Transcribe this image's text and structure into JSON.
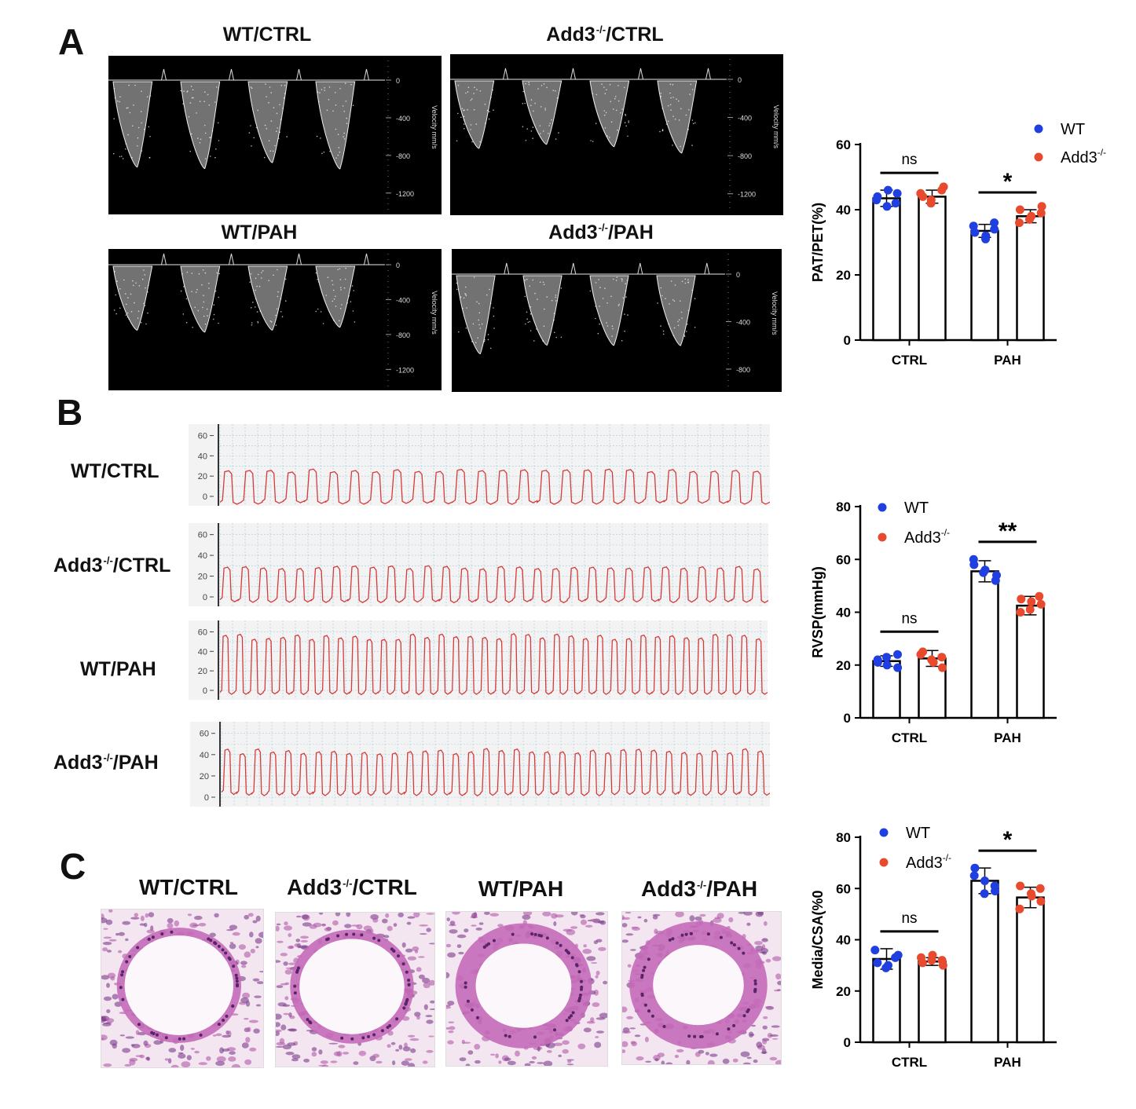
{
  "panels": {
    "A": "A",
    "B": "B",
    "C": "C"
  },
  "groups": {
    "wt_ctrl": "WT/CTRL",
    "add3_prefix": "Add3",
    "add3_sup": "-/-",
    "ctrl_suffix": "/CTRL",
    "wt_pah": "WT/PAH",
    "pah_suffix": "/PAH"
  },
  "doppler": {
    "ticks_a": [
      "0",
      "-400",
      "-800",
      "-1200"
    ],
    "ticks_b": [
      "0",
      "-400",
      "-800"
    ],
    "axis_label": "Velocity mm/s"
  },
  "pressure": {
    "ticks": [
      "60",
      "40",
      "20",
      "0"
    ]
  },
  "colors": {
    "wt": "#1f3fe0",
    "add3": "#e84a2e",
    "trace": "#d63a3a"
  },
  "chart_data": [
    {
      "type": "bar",
      "panel": "A",
      "categories": [
        "CTRL",
        "PAH"
      ],
      "ylabel": "PAT/PET(%)",
      "ylim": [
        0,
        60
      ],
      "yticks": [
        0,
        20,
        40,
        60
      ],
      "legend_position": "top-right",
      "series": [
        {
          "name": "WT",
          "values": [
            43.5,
            33.5
          ],
          "errors": [
            2.5,
            2.0
          ],
          "points": [
            [
              44,
              46,
              42,
              43,
              41,
              45
            ],
            [
              35,
              32,
              34,
              33,
              31,
              36
            ]
          ]
        },
        {
          "name": "Add3-/-",
          "values": [
            44,
            38
          ],
          "errors": [
            2.0,
            2.0
          ],
          "points": [
            [
              45,
              43,
              47,
              44,
              42,
              46
            ],
            [
              40,
              37,
              39,
              36,
              38,
              41
            ]
          ]
        }
      ],
      "significance": [
        "ns",
        "*"
      ]
    },
    {
      "type": "bar",
      "panel": "B",
      "categories": [
        "CTRL",
        "PAH"
      ],
      "ylabel": "RVSP(mmHg)",
      "ylim": [
        0,
        80
      ],
      "yticks": [
        0,
        20,
        40,
        60,
        80
      ],
      "legend_position": "top-left",
      "series": [
        {
          "name": "WT",
          "values": [
            21.5,
            55.5
          ],
          "errors": [
            2.0,
            4.0
          ],
          "points": [
            [
              22,
              20,
              24,
              21,
              23,
              19
            ],
            [
              58,
              55,
              52,
              60,
              56,
              54
            ]
          ]
        },
        {
          "name": "Add3-/-",
          "values": [
            22.5,
            42.5
          ],
          "errors": [
            3.0,
            3.5
          ],
          "points": [
            [
              24,
              21,
              19,
              25,
              22,
              23
            ],
            [
              45,
              41,
              43,
              40,
              44,
              46
            ]
          ]
        }
      ],
      "significance": [
        "ns",
        "**"
      ]
    },
    {
      "type": "bar",
      "panel": "C",
      "categories": [
        "CTRL",
        "PAH"
      ],
      "ylabel": "Media/CSA(%0",
      "ylim": [
        0,
        80
      ],
      "yticks": [
        0,
        20,
        40,
        60,
        80
      ],
      "legend_position": "top-left",
      "series": [
        {
          "name": "WT",
          "values": [
            32.5,
            63
          ],
          "errors": [
            4.0,
            5.0
          ],
          "points": [
            [
              36,
              30,
              34,
              31,
              29,
              33
            ],
            [
              68,
              63,
              59,
              65,
              58,
              61
            ]
          ]
        },
        {
          "name": "Add3-/-",
          "values": [
            31.5,
            56.5
          ],
          "errors": [
            1.5,
            4.0
          ],
          "points": [
            [
              33,
              32,
              30,
              31,
              34,
              32
            ],
            [
              61,
              58,
              55,
              52,
              57,
              60
            ]
          ]
        }
      ],
      "significance": [
        "ns",
        "*"
      ]
    }
  ]
}
